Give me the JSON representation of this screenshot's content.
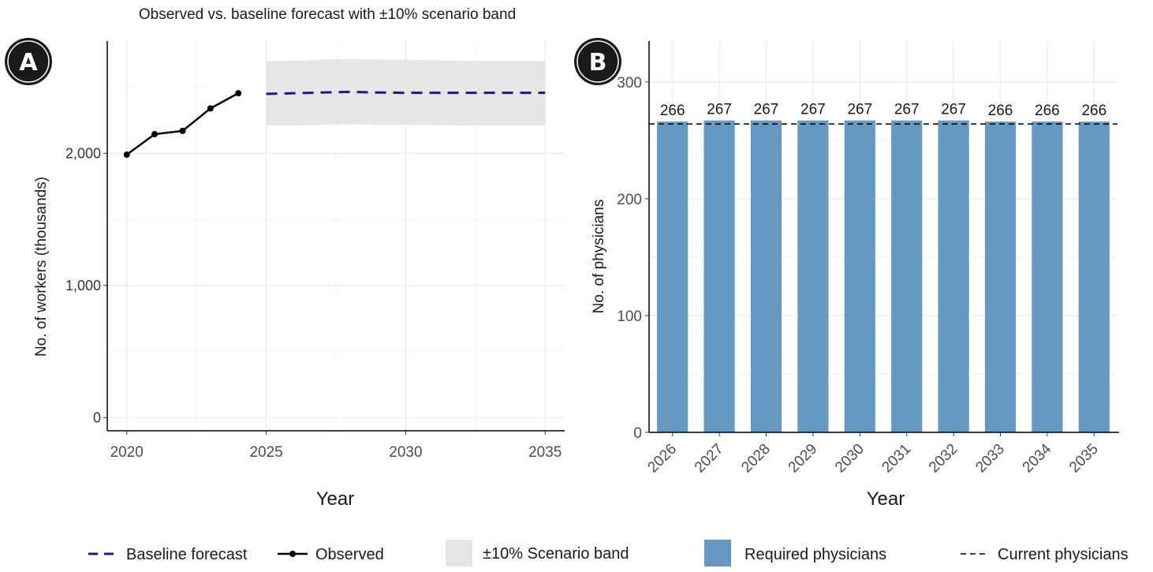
{
  "chart_data": [
    {
      "panel": "A",
      "type": "line",
      "title": "Observed vs. baseline forecast with ±10% scenario band",
      "xlabel": "Year",
      "ylabel": "No. of workers (thousands)",
      "xlim": [
        2019.3,
        2035.7
      ],
      "ylim": [
        -100,
        2850
      ],
      "xticks": [
        2020,
        2025,
        2030,
        2035
      ],
      "yticks": [
        0,
        1000,
        2000
      ],
      "ytick_labels": [
        "0",
        "1,000",
        "2,000"
      ],
      "grid": true,
      "observed": {
        "name": "Observed",
        "color": "#000000",
        "x": [
          2020,
          2021,
          2022,
          2023,
          2024
        ],
        "y": [
          1990,
          2145,
          2170,
          2340,
          2455
        ]
      },
      "baseline_forecast": {
        "name": "Baseline forecast",
        "color": "#1a1a80",
        "x": [
          2025,
          2026,
          2027,
          2028,
          2029,
          2030,
          2031,
          2032,
          2033,
          2034,
          2035
        ],
        "y": [
          2450,
          2455,
          2460,
          2465,
          2460,
          2458,
          2458,
          2458,
          2458,
          2458,
          2458
        ]
      },
      "scenario_band": {
        "name": "±10% Scenario band",
        "color": "#e6e6e6",
        "x": [
          2025,
          2026,
          2027,
          2028,
          2029,
          2030,
          2031,
          2032,
          2033,
          2034,
          2035
        ],
        "lower": [
          2210,
          2210,
          2215,
          2220,
          2215,
          2215,
          2215,
          2210,
          2210,
          2210,
          2210
        ],
        "upper": [
          2700,
          2700,
          2710,
          2715,
          2710,
          2710,
          2705,
          2700,
          2700,
          2700,
          2700
        ]
      }
    },
    {
      "panel": "B",
      "type": "bar",
      "xlabel": "Year",
      "ylabel": "No. of physicians",
      "ylim": [
        0,
        335
      ],
      "yticks": [
        0,
        100,
        200,
        300
      ],
      "grid": true,
      "categories": [
        "2026",
        "2027",
        "2028",
        "2029",
        "2030",
        "2031",
        "2032",
        "2033",
        "2034",
        "2035"
      ],
      "series": [
        {
          "name": "Required physicians",
          "color": "#6699c2",
          "values": [
            266,
            267,
            267,
            267,
            267,
            267,
            267,
            266,
            266,
            266
          ]
        }
      ],
      "data_labels": [
        "266",
        "267",
        "267",
        "267",
        "267",
        "267",
        "267",
        "266",
        "266",
        "266"
      ],
      "reference_line": {
        "name": "Current physicians",
        "value": 264,
        "style": "dashed"
      }
    }
  ],
  "badges": [
    "A",
    "B"
  ],
  "legend": {
    "items": [
      {
        "label": "Baseline forecast",
        "swatch": "dashed-line",
        "color": "#1a1a80"
      },
      {
        "label": "Observed",
        "swatch": "line-point",
        "color": "#000000"
      },
      {
        "label": "±10% Scenario band",
        "swatch": "box",
        "color": "#e6e6e6"
      },
      {
        "label": "Required physicians",
        "swatch": "box",
        "color": "#6699c2"
      },
      {
        "label": "Current physicians",
        "swatch": "dashed-line",
        "color": "#000000"
      }
    ]
  }
}
